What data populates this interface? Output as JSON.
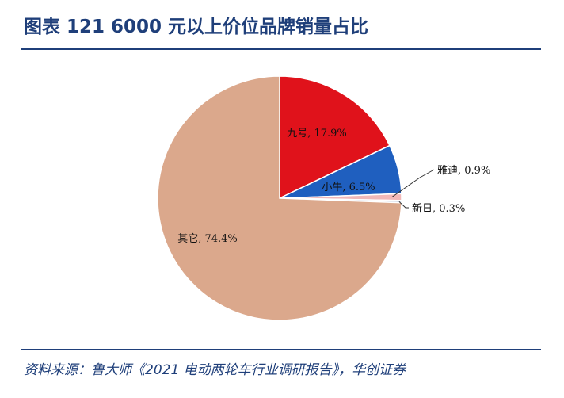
{
  "header": {
    "title": "图表 121  6000 元以上价位品牌销量占比"
  },
  "footer": {
    "source": "资料来源：鲁大师《2021 电动两轮车行业调研报告》，华创证券"
  },
  "chart_data": {
    "type": "pie",
    "title": "",
    "slices": [
      {
        "name": "九号",
        "value": 17.9,
        "label": "九号, 17.9%",
        "color": "#e0121b"
      },
      {
        "name": "小牛",
        "value": 6.5,
        "label": "小牛, 6.5%",
        "color": "#1f5fbf"
      },
      {
        "name": "雅迪",
        "value": 0.9,
        "label": "雅迪, 0.9%",
        "color": "#f2b8b8"
      },
      {
        "name": "新日",
        "value": 0.3,
        "label": "新日, 0.3%",
        "color": "#cfd8e6"
      },
      {
        "name": "其它",
        "value": 74.4,
        "label": "其它, 74.4%",
        "color": "#dba88c"
      }
    ],
    "start_angle_deg": 0,
    "direction": "clockwise",
    "legend": "none"
  }
}
